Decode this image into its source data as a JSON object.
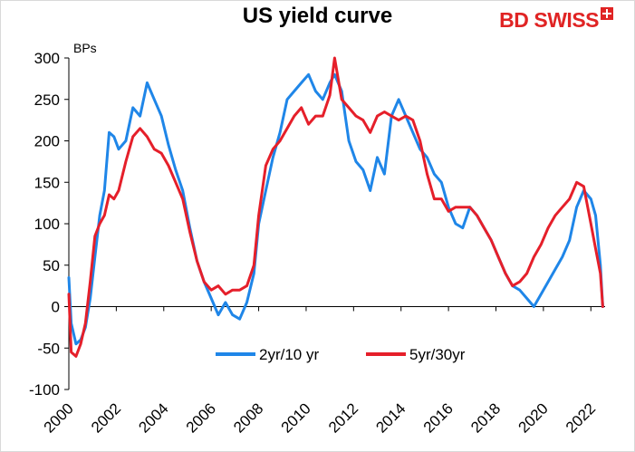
{
  "chart_data": {
    "type": "line",
    "title": "US yield curve",
    "ylabel": "BPs",
    "xlabel": "",
    "ylim": [
      -100,
      300
    ],
    "yticks": [
      -100,
      -50,
      0,
      50,
      100,
      150,
      200,
      250,
      300
    ],
    "xlim": [
      2000,
      2022.6
    ],
    "xticks": [
      2000,
      2002,
      2004,
      2006,
      2008,
      2010,
      2012,
      2014,
      2016,
      2018,
      2020,
      2022
    ],
    "legend_position": "bottom-center",
    "grid": false,
    "series": [
      {
        "name": "2yr/10 yr",
        "color": "#1f86e8",
        "x": [
          2000.0,
          2000.1,
          2000.3,
          2000.5,
          2000.7,
          2000.9,
          2001.1,
          2001.3,
          2001.5,
          2001.7,
          2001.9,
          2002.1,
          2002.4,
          2002.7,
          2003.0,
          2003.3,
          2003.6,
          2003.9,
          2004.2,
          2004.5,
          2004.8,
          2005.1,
          2005.4,
          2005.7,
          2006.0,
          2006.3,
          2006.6,
          2006.9,
          2007.2,
          2007.5,
          2007.8,
          2008.0,
          2008.3,
          2008.6,
          2008.9,
          2009.2,
          2009.5,
          2009.8,
          2010.1,
          2010.4,
          2010.7,
          2011.0,
          2011.2,
          2011.5,
          2011.8,
          2012.1,
          2012.4,
          2012.7,
          2013.0,
          2013.3,
          2013.6,
          2013.9,
          2014.2,
          2014.5,
          2014.8,
          2015.1,
          2015.4,
          2015.7,
          2016.0,
          2016.3,
          2016.6,
          2016.9,
          2017.2,
          2017.5,
          2017.8,
          2018.1,
          2018.4,
          2018.7,
          2019.0,
          2019.3,
          2019.6,
          2019.9,
          2020.2,
          2020.5,
          2020.8,
          2021.1,
          2021.4,
          2021.7,
          2022.0,
          2022.2,
          2022.4,
          2022.5
        ],
        "values": [
          35,
          -20,
          -45,
          -40,
          -25,
          10,
          60,
          110,
          140,
          210,
          205,
          190,
          200,
          240,
          230,
          270,
          250,
          230,
          195,
          165,
          140,
          95,
          55,
          30,
          10,
          -10,
          5,
          -10,
          -15,
          5,
          40,
          100,
          140,
          180,
          210,
          250,
          260,
          270,
          280,
          260,
          250,
          270,
          280,
          260,
          200,
          175,
          165,
          140,
          180,
          160,
          230,
          250,
          230,
          210,
          190,
          180,
          160,
          150,
          120,
          100,
          95,
          120,
          110,
          95,
          80,
          60,
          40,
          25,
          20,
          10,
          0,
          15,
          30,
          45,
          60,
          80,
          120,
          140,
          130,
          110,
          50,
          0
        ]
      },
      {
        "name": "5yr/30yr",
        "color": "#e51f2a",
        "x": [
          2000.0,
          2000.1,
          2000.3,
          2000.5,
          2000.7,
          2000.9,
          2001.1,
          2001.3,
          2001.5,
          2001.7,
          2001.9,
          2002.1,
          2002.4,
          2002.7,
          2003.0,
          2003.3,
          2003.6,
          2003.9,
          2004.2,
          2004.5,
          2004.8,
          2005.1,
          2005.4,
          2005.7,
          2006.0,
          2006.3,
          2006.6,
          2006.9,
          2007.2,
          2007.5,
          2007.8,
          2008.0,
          2008.3,
          2008.6,
          2008.9,
          2009.2,
          2009.5,
          2009.8,
          2010.1,
          2010.4,
          2010.7,
          2011.0,
          2011.2,
          2011.5,
          2011.8,
          2012.1,
          2012.4,
          2012.7,
          2013.0,
          2013.3,
          2013.6,
          2013.9,
          2014.2,
          2014.5,
          2014.8,
          2015.1,
          2015.4,
          2015.7,
          2016.0,
          2016.3,
          2016.6,
          2016.9,
          2017.2,
          2017.5,
          2017.8,
          2018.1,
          2018.4,
          2018.7,
          2019.0,
          2019.3,
          2019.6,
          2019.9,
          2020.2,
          2020.5,
          2020.8,
          2021.1,
          2021.4,
          2021.7,
          2022.0,
          2022.2,
          2022.4,
          2022.5
        ],
        "values": [
          15,
          -55,
          -60,
          -45,
          -20,
          30,
          85,
          100,
          110,
          135,
          130,
          140,
          175,
          205,
          215,
          205,
          190,
          185,
          170,
          150,
          130,
          90,
          55,
          30,
          20,
          25,
          15,
          20,
          20,
          25,
          50,
          110,
          170,
          190,
          200,
          215,
          230,
          240,
          220,
          230,
          230,
          255,
          300,
          250,
          240,
          230,
          225,
          210,
          230,
          235,
          230,
          225,
          230,
          225,
          200,
          160,
          130,
          130,
          115,
          120,
          120,
          120,
          110,
          95,
          80,
          60,
          40,
          25,
          30,
          40,
          60,
          75,
          95,
          110,
          120,
          130,
          150,
          145,
          100,
          70,
          40,
          0
        ]
      }
    ]
  },
  "brand": {
    "bd": "BD",
    "swiss": "SWISS"
  }
}
